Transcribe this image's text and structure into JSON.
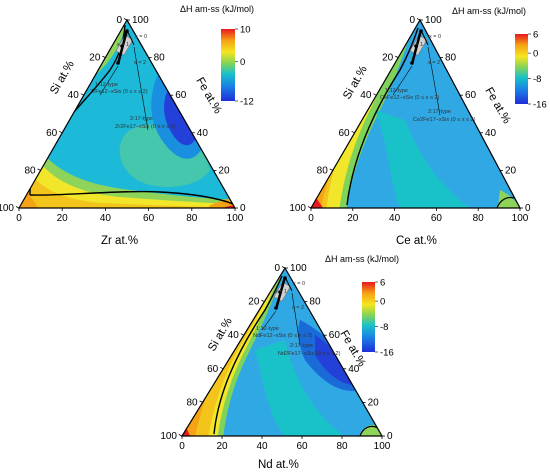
{
  "figure": {
    "panels": [
      {
        "id": "Zr",
        "colorbar_title": "ΔH am-ss (kJ/mol)",
        "colorbar_ticks": [
          "10",
          "0",
          "-12"
        ],
        "bottom_axis_label": "Zr at.%",
        "left_axis_label": "Si at.%",
        "right_axis_label": "Fe at.%",
        "annotations": {
          "x0": "x = 0",
          "x1": "x = 1",
          "x2": "x = 2",
          "type112": "1:12-type",
          "formula112": "ZrFe12−xSix (0 ≤ x ≤ 2)",
          "type217": "2:17-type",
          "formula217": "Zr2Fe17−xSix (0 ≤ x ≤ 2)"
        }
      },
      {
        "id": "Ce",
        "colorbar_title": "ΔH am-ss (kJ/mol)",
        "colorbar_ticks": [
          "6",
          "0",
          "-8",
          "-16"
        ],
        "bottom_axis_label": "Ce at.%",
        "left_axis_label": "Si at.%",
        "right_axis_label": "Fe at.%",
        "annotations": {
          "x0": "x = 0",
          "x1": "x = 1",
          "x2": "x = 2",
          "type112": "1:12-type",
          "formula112": "CeFe12−xSix (0 ≤ x ≤ 2)",
          "type217": "2:17-type",
          "formula217": "Ce2Fe17−xSix (0 ≤ x ≤ 2)"
        }
      },
      {
        "id": "Nd",
        "colorbar_title": "ΔH am-ss (kJ/mol)",
        "colorbar_ticks": [
          "6",
          "0",
          "-8",
          "-16"
        ],
        "bottom_axis_label": "Nd at.%",
        "left_axis_label": "Si at.%",
        "right_axis_label": "Fe at.%",
        "annotations": {
          "x0": "x = 0",
          "x1": "x = 1",
          "x2": "x = 2",
          "type112": "1:12-type",
          "formula112": "NdFe12−xSix (0 ≤ x ≤ 2)",
          "type217": "2:17-type",
          "formula217": "Nd2Fe17−xSix (0 ≤ x ≤ 2)"
        }
      }
    ]
  },
  "chart_data": [
    {
      "type": "heatmap",
      "subtype": "ternary-contour",
      "components": [
        "Zr",
        "Si",
        "Fe"
      ],
      "axes": {
        "bottom": {
          "label": "Zr at.%",
          "ticks": [
            "0",
            "20",
            "40",
            "60",
            "80",
            "100"
          ]
        },
        "left": {
          "label": "Si at.%",
          "ticks": [
            "100",
            "80",
            "60",
            "40",
            "20",
            "0"
          ]
        },
        "right": {
          "label": "Fe at.%",
          "ticks": [
            "100",
            "80",
            "60",
            "40",
            "20",
            "0"
          ]
        }
      },
      "colorbar": {
        "label": "ΔH am-ss (kJ/mol)",
        "range": [
          -12,
          10
        ],
        "ticks": [
          10,
          0,
          -12
        ]
      },
      "zero_contour": "closed",
      "minimum_region": {
        "location": "near Fe-rich side",
        "value": -12
      },
      "maximum_region": {
        "location": "Zr corner",
        "value": 10
      },
      "compositions": [
        "ZrFe12−xSix (0 ≤ x ≤ 2)",
        "Zr2Fe17−xSix (0 ≤ x ≤ 2)"
      ]
    },
    {
      "type": "heatmap",
      "subtype": "ternary-contour",
      "components": [
        "Ce",
        "Si",
        "Fe"
      ],
      "axes": {
        "bottom": {
          "label": "Ce at.%",
          "ticks": [
            "0",
            "20",
            "40",
            "60",
            "80",
            "100"
          ]
        },
        "left": {
          "label": "Si at.%",
          "ticks": [
            "100",
            "80",
            "60",
            "40",
            "20",
            "0"
          ]
        },
        "right": {
          "label": "Fe at.%",
          "ticks": [
            "100",
            "80",
            "60",
            "40",
            "20",
            "0"
          ]
        }
      },
      "colorbar": {
        "label": "ΔH am-ss (kJ/mol)",
        "range": [
          -16,
          6
        ],
        "ticks": [
          6,
          0,
          -8,
          -16
        ]
      },
      "zero_contour": "open",
      "minimum_region": {
        "location": "Fe-rich side",
        "value": -16
      },
      "maximum_region": {
        "location": "Si corner",
        "value": 6
      },
      "compositions": [
        "CeFe12−xSix (0 ≤ x ≤ 2)",
        "Ce2Fe17−xSix (0 ≤ x ≤ 2)"
      ]
    },
    {
      "type": "heatmap",
      "subtype": "ternary-contour",
      "components": [
        "Nd",
        "Si",
        "Fe"
      ],
      "axes": {
        "bottom": {
          "label": "Nd at.%",
          "ticks": [
            "0",
            "20",
            "40",
            "60",
            "80",
            "100"
          ]
        },
        "left": {
          "label": "Si at.%",
          "ticks": [
            "100",
            "80",
            "60",
            "40",
            "20",
            "0"
          ]
        },
        "right": {
          "label": "Fe at.%",
          "ticks": [
            "100",
            "80",
            "60",
            "40",
            "20",
            "0"
          ]
        }
      },
      "colorbar": {
        "label": "ΔH am-ss (kJ/mol)",
        "range": [
          -16,
          6
        ],
        "ticks": [
          6,
          0,
          -8,
          -16
        ]
      },
      "zero_contour": "open",
      "minimum_region": {
        "location": "Fe-rich side",
        "value": -16
      },
      "maximum_region": {
        "location": "Si corner",
        "value": 6
      },
      "compositions": [
        "NdFe12−xSix (0 ≤ x ≤ 2)",
        "Nd2Fe17−xSix (0 ≤ x ≤ 2)"
      ]
    }
  ]
}
